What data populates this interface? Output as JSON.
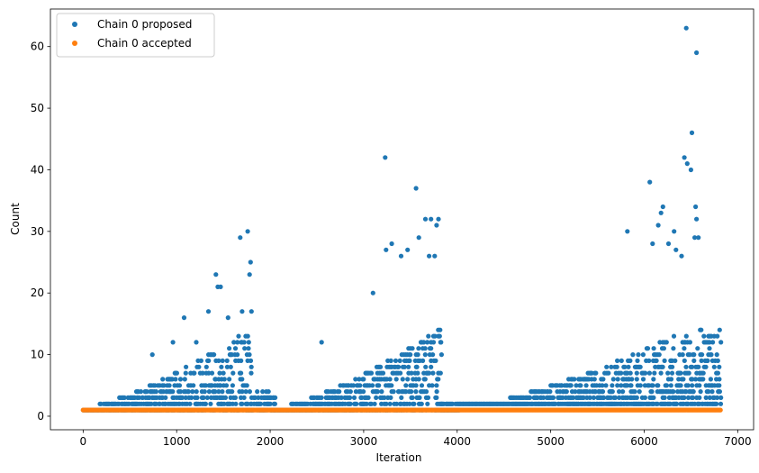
{
  "chart_data": {
    "type": "scatter",
    "xlabel": "Iteration",
    "ylabel": "Count",
    "xlim": [
      -350,
      7170
    ],
    "ylim": [
      -2.2,
      66.1
    ],
    "xticks": [
      0,
      1000,
      2000,
      3000,
      4000,
      5000,
      6000,
      7000
    ],
    "yticks": [
      0,
      10,
      20,
      30,
      40,
      50,
      60
    ],
    "grid": false,
    "legend_position": "top-left",
    "colors": {
      "proposed": "#1f77b4",
      "accepted": "#ff7f0e"
    },
    "segments": [
      {
        "x_start": 0,
        "x_end": 1800,
        "peak_x": 1800,
        "floor": 1,
        "shape": "ramp"
      },
      {
        "x_start": 1800,
        "x_end": 2050,
        "peak_x": 2050,
        "floor": 1,
        "shape": "low"
      },
      {
        "x_start": 2050,
        "x_end": 3830,
        "peak_x": 3830,
        "floor": 1,
        "shape": "ramp"
      },
      {
        "x_start": 3830,
        "x_end": 4020,
        "peak_x": 4020,
        "floor": 1,
        "shape": "gap"
      },
      {
        "x_start": 4020,
        "x_end": 6820,
        "peak_x": 6500,
        "floor": 2,
        "shape": "ramp"
      }
    ],
    "outliers": [
      {
        "x": 740,
        "y": 10
      },
      {
        "x": 960,
        "y": 12
      },
      {
        "x": 1080,
        "y": 16
      },
      {
        "x": 1210,
        "y": 12
      },
      {
        "x": 1340,
        "y": 17
      },
      {
        "x": 1420,
        "y": 23
      },
      {
        "x": 1440,
        "y": 21
      },
      {
        "x": 1470,
        "y": 21
      },
      {
        "x": 1550,
        "y": 16
      },
      {
        "x": 1680,
        "y": 29
      },
      {
        "x": 1700,
        "y": 17
      },
      {
        "x": 1760,
        "y": 30
      },
      {
        "x": 1790,
        "y": 25
      },
      {
        "x": 1780,
        "y": 23
      },
      {
        "x": 1800,
        "y": 17
      },
      {
        "x": 2550,
        "y": 12
      },
      {
        "x": 3100,
        "y": 20
      },
      {
        "x": 3230,
        "y": 42
      },
      {
        "x": 3240,
        "y": 27
      },
      {
        "x": 3300,
        "y": 28
      },
      {
        "x": 3400,
        "y": 26
      },
      {
        "x": 3470,
        "y": 27
      },
      {
        "x": 3560,
        "y": 37
      },
      {
        "x": 3590,
        "y": 29
      },
      {
        "x": 3660,
        "y": 32
      },
      {
        "x": 3720,
        "y": 32
      },
      {
        "x": 3780,
        "y": 31
      },
      {
        "x": 3800,
        "y": 32
      },
      {
        "x": 3700,
        "y": 26
      },
      {
        "x": 3760,
        "y": 26
      },
      {
        "x": 5820,
        "y": 30
      },
      {
        "x": 6060,
        "y": 38
      },
      {
        "x": 6090,
        "y": 28
      },
      {
        "x": 6150,
        "y": 31
      },
      {
        "x": 6180,
        "y": 33
      },
      {
        "x": 6200,
        "y": 34
      },
      {
        "x": 6260,
        "y": 28
      },
      {
        "x": 6320,
        "y": 30
      },
      {
        "x": 6340,
        "y": 27
      },
      {
        "x": 6450,
        "y": 63
      },
      {
        "x": 6430,
        "y": 42
      },
      {
        "x": 6460,
        "y": 41
      },
      {
        "x": 6500,
        "y": 40
      },
      {
        "x": 6510,
        "y": 46
      },
      {
        "x": 6560,
        "y": 59
      },
      {
        "x": 6550,
        "y": 34
      },
      {
        "x": 6540,
        "y": 29
      },
      {
        "x": 6580,
        "y": 29
      },
      {
        "x": 6560,
        "y": 32
      },
      {
        "x": 6400,
        "y": 26
      }
    ],
    "series": [
      {
        "name": "Chain 0 proposed",
        "values": "proposed counts per iteration 0–6820 (generated by pattern in segments + outliers)"
      },
      {
        "name": "Chain 0 accepted",
        "values": "1 at every iteration 0–6820"
      }
    ]
  }
}
